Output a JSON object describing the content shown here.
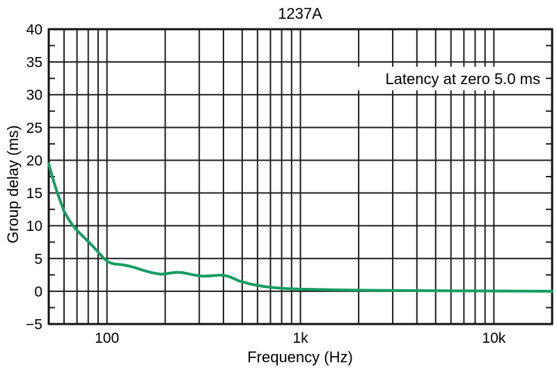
{
  "chart_data": {
    "type": "line",
    "title": "1237A",
    "xlabel": "Frequency (Hz)",
    "ylabel": "Group delay (ms)",
    "annotation": {
      "text": "Latency at zero 5.0 ms",
      "position": "top-right"
    },
    "x_scale": "log",
    "xlim": [
      50,
      20000
    ],
    "ylim": [
      -5,
      40
    ],
    "grid": true,
    "legend": "none",
    "x_major_ticks": [
      {
        "value": 100,
        "label": "100"
      },
      {
        "value": 1000,
        "label": "1k"
      },
      {
        "value": 10000,
        "label": "10k"
      }
    ],
    "x_minor_gridlines": [
      60,
      70,
      80,
      90,
      200,
      300,
      400,
      500,
      600,
      700,
      800,
      900,
      2000,
      3000,
      4000,
      5000,
      6000,
      7000,
      8000,
      9000
    ],
    "y_major_ticks": [
      {
        "value": 40,
        "label": "40"
      },
      {
        "value": 35,
        "label": "35"
      },
      {
        "value": 30,
        "label": "30"
      },
      {
        "value": 25,
        "label": "25"
      },
      {
        "value": 20,
        "label": "20"
      },
      {
        "value": 15,
        "label": "15"
      },
      {
        "value": 10,
        "label": "10"
      },
      {
        "value": 5,
        "label": "5"
      },
      {
        "value": 0,
        "label": "0"
      },
      {
        "value": -5,
        "label": "−5"
      }
    ],
    "y_minor_ticks": [
      -2.5,
      2.5,
      7.5,
      12.5,
      17.5,
      22.5,
      27.5,
      32.5,
      37.5
    ],
    "series": [
      {
        "name": "group delay",
        "color": "#169c63",
        "x": [
          50,
          52,
          55,
          58,
          60,
          63,
          66,
          70,
          75,
          80,
          85,
          90,
          95,
          100,
          105,
          110,
          115,
          120,
          130,
          140,
          150,
          160,
          170,
          180,
          190,
          200,
          215,
          230,
          245,
          260,
          280,
          300,
          320,
          340,
          360,
          380,
          400,
          420,
          440,
          460,
          480,
          500,
          550,
          600,
          650,
          700,
          750,
          800,
          850,
          900,
          1000,
          1200,
          1500,
          2000,
          2500,
          3000,
          4000,
          5000,
          6000,
          8000,
          10000,
          12000,
          16000,
          20000
        ],
        "y": [
          19.5,
          17.6,
          15.3,
          13.4,
          12.2,
          11.1,
          10.2,
          9.3,
          8.4,
          7.6,
          6.8,
          6.0,
          5.2,
          4.6,
          4.3,
          4.15,
          4.1,
          4.05,
          3.85,
          3.6,
          3.3,
          3.05,
          2.85,
          2.7,
          2.6,
          2.65,
          2.8,
          2.9,
          2.85,
          2.7,
          2.5,
          2.35,
          2.3,
          2.35,
          2.4,
          2.45,
          2.45,
          2.3,
          2.1,
          1.85,
          1.6,
          1.45,
          1.1,
          0.9,
          0.72,
          0.6,
          0.52,
          0.46,
          0.4,
          0.37,
          0.32,
          0.27,
          0.21,
          0.17,
          0.14,
          0.12,
          0.09,
          0.08,
          0.06,
          0.05,
          0.04,
          0.03,
          0.01,
          0.0
        ]
      }
    ]
  },
  "colors": {
    "curve": "#169c63",
    "grid": "#1e1e1e",
    "frame": "#111111",
    "text": "#000000",
    "background": "#ffffff"
  }
}
